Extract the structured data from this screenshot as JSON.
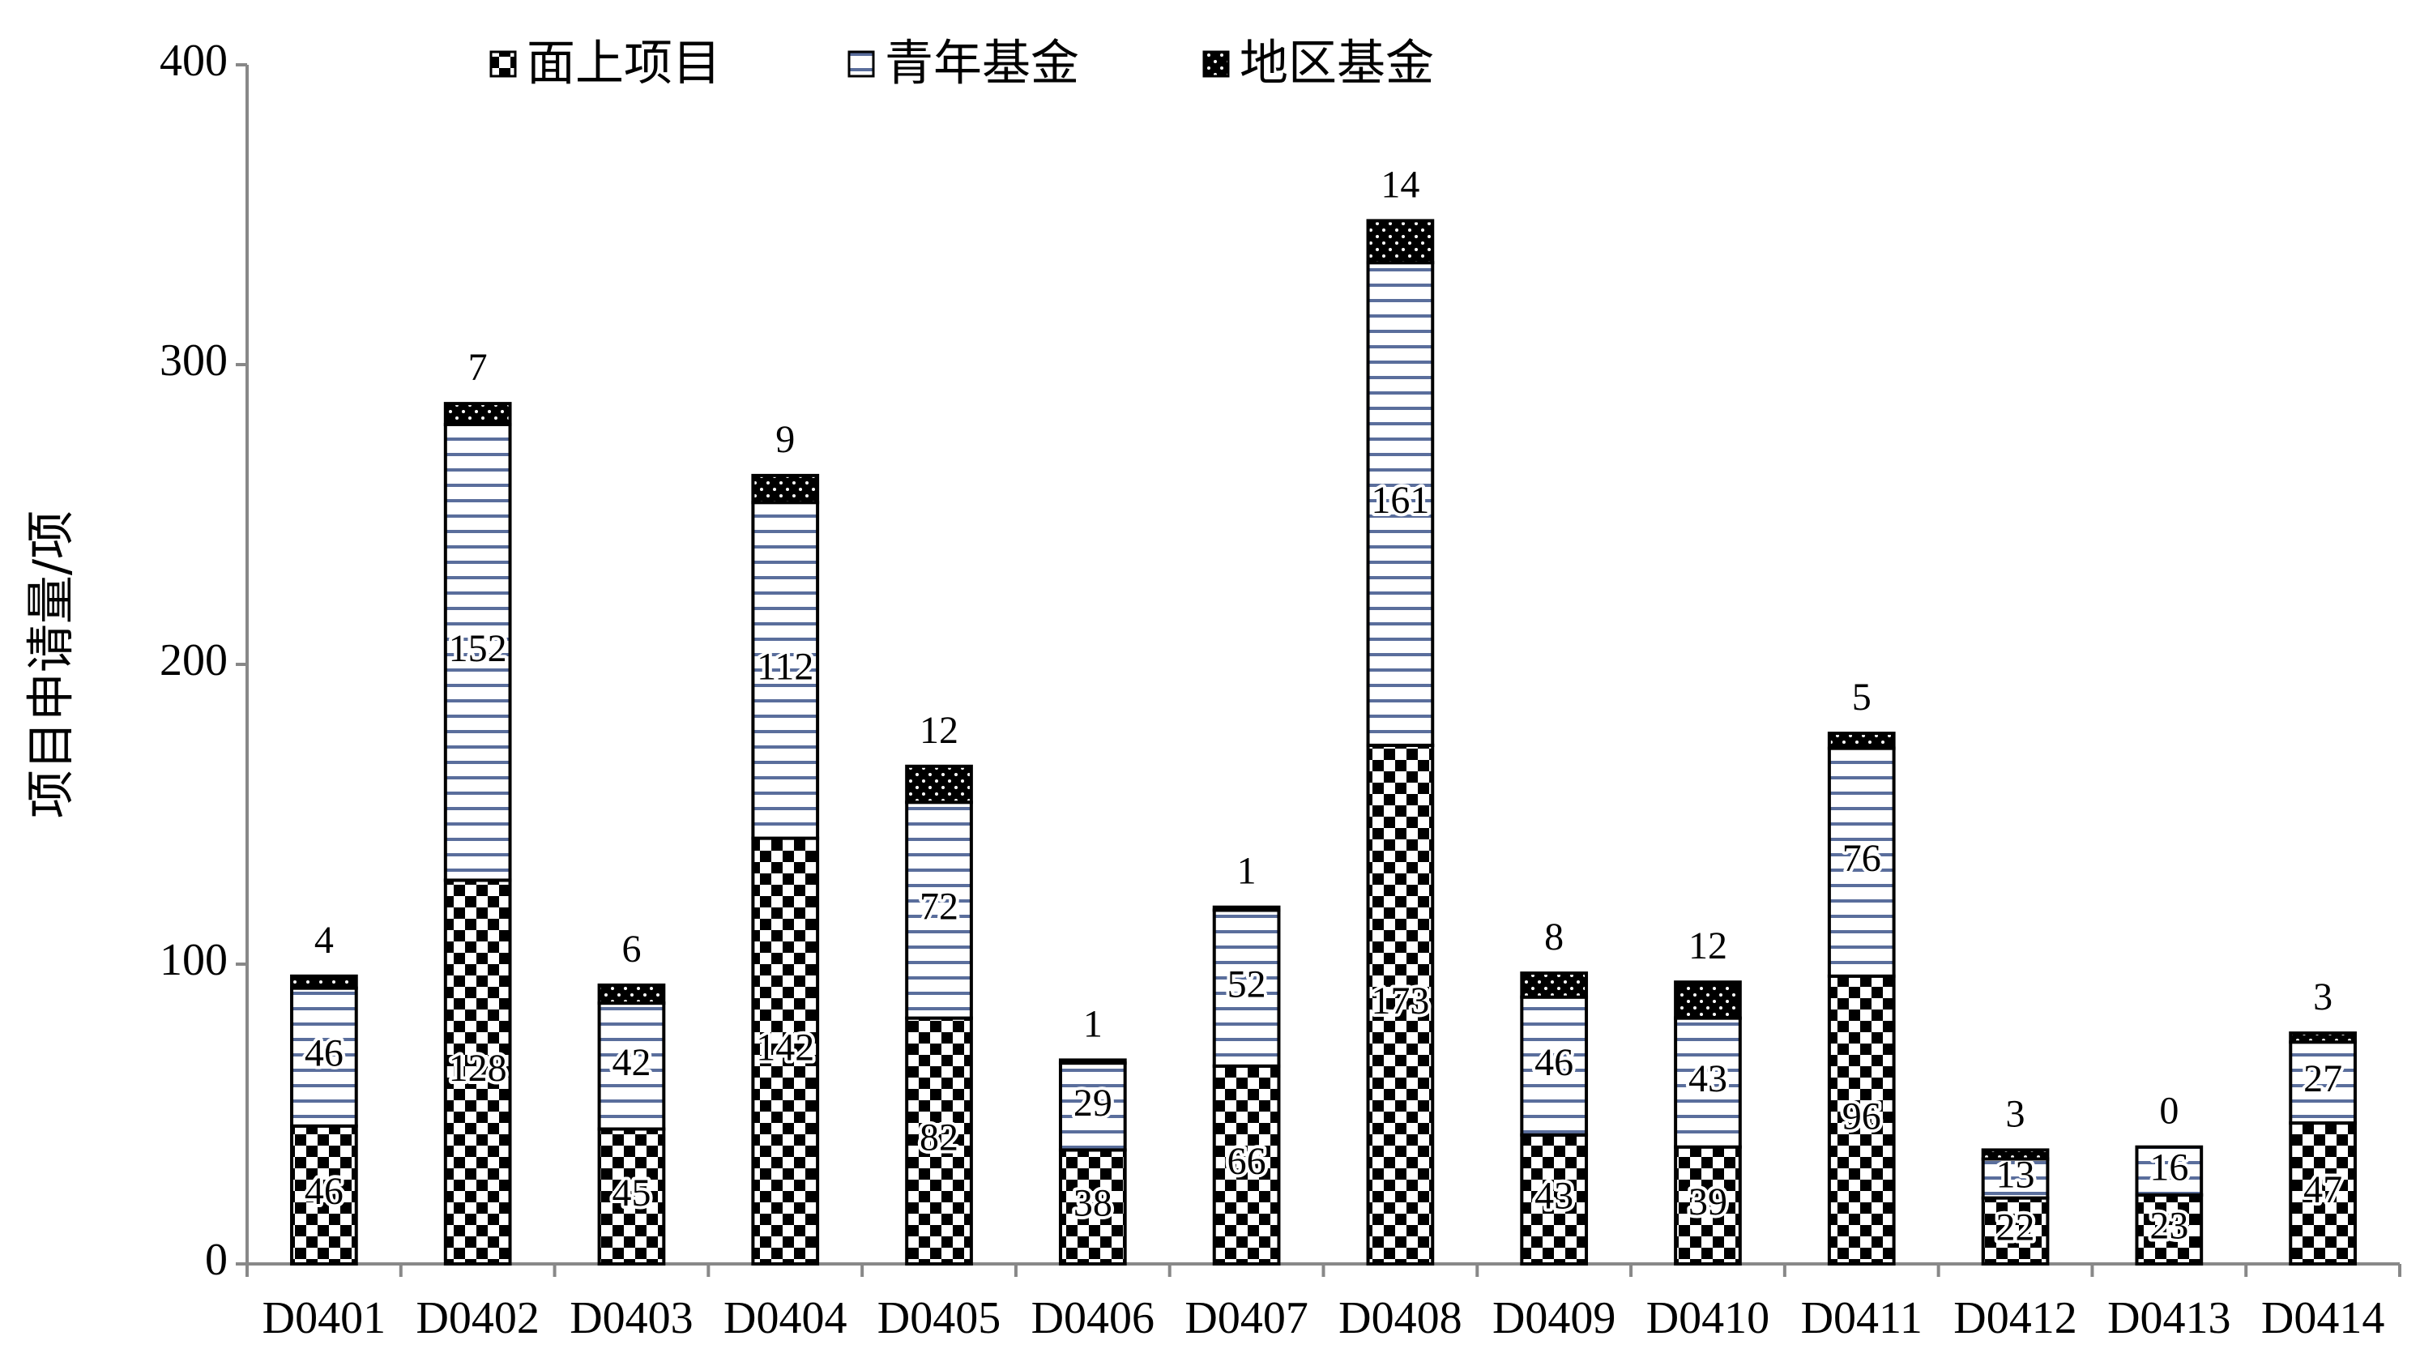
{
  "chart_data": {
    "type": "stacked-bar",
    "y_label": "项目申请量/项",
    "categories": [
      "D0401",
      "D0402",
      "D0403",
      "D0404",
      "D0405",
      "D0406",
      "D0407",
      "D0408",
      "D0409",
      "D0410",
      "D0411",
      "D0412",
      "D0413",
      "D0414"
    ],
    "series": [
      {
        "name": "面上项目",
        "color": "#000000",
        "pattern": "checker",
        "values": [
          46,
          128,
          45,
          142,
          82,
          38,
          66,
          173,
          43,
          39,
          96,
          22,
          23,
          47
        ]
      },
      {
        "name": "青年基金",
        "color": "#5a6e9c",
        "pattern": "hlines",
        "values": [
          46,
          152,
          42,
          112,
          72,
          29,
          52,
          161,
          46,
          43,
          76,
          13,
          16,
          27
        ]
      },
      {
        "name": "地区基金",
        "color": "#000000",
        "pattern": "dots",
        "values": [
          4,
          7,
          6,
          9,
          12,
          1,
          1,
          14,
          8,
          12,
          5,
          3,
          0,
          3
        ]
      }
    ],
    "ylim": [
      0,
      400
    ],
    "yticks": [
      0,
      100,
      200,
      300,
      400
    ],
    "legend": "top"
  }
}
